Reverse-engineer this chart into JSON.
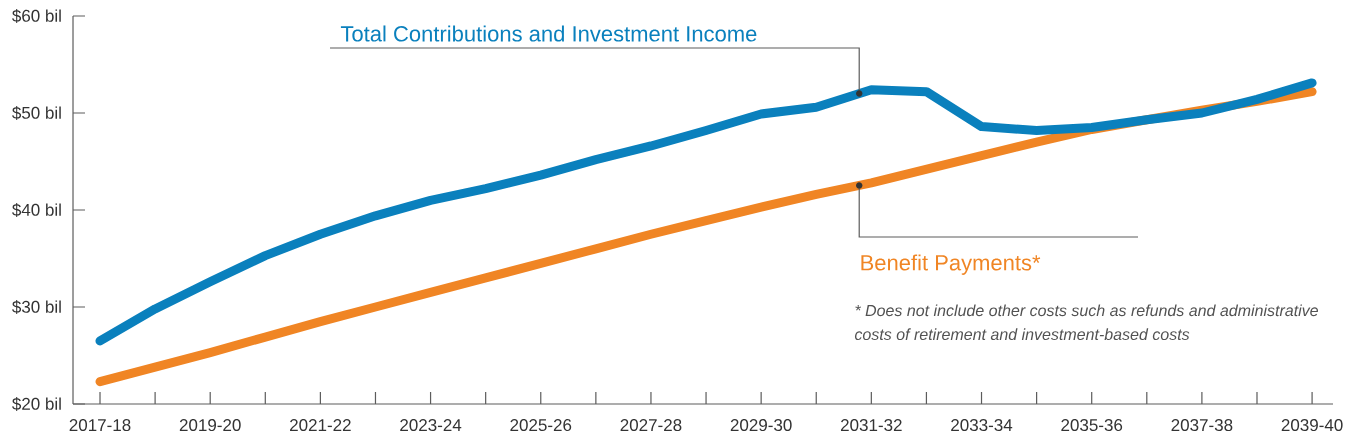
{
  "chart_data": {
    "type": "line",
    "categories": [
      "2017-18",
      null,
      "2019-20",
      null,
      "2021-22",
      null,
      "2023-24",
      null,
      "2025-26",
      null,
      "2027-28",
      null,
      "2029-30",
      null,
      "2031-32",
      null,
      "2033-34",
      null,
      "2035-36",
      null,
      "2037-38",
      null,
      "2039-40"
    ],
    "series": [
      {
        "name": "Total Contributions and Investment Income",
        "color": "#0a80bd",
        "values": [
          26.5,
          29.8,
          32.6,
          35.3,
          37.5,
          39.4,
          41.0,
          42.2,
          43.6,
          45.2,
          46.6,
          48.2,
          49.9,
          50.6,
          52.4,
          52.2,
          48.6,
          48.2,
          48.5,
          49.3,
          50.0,
          51.4,
          53.1
        ]
      },
      {
        "name": "Benefit Payments*",
        "color": "#f08524",
        "values": [
          22.3,
          23.8,
          25.3,
          26.9,
          28.5,
          30.0,
          31.5,
          33.0,
          34.5,
          36.0,
          37.5,
          38.9,
          40.3,
          41.6,
          42.8,
          44.2,
          45.6,
          47.0,
          48.3,
          49.3,
          50.3,
          51.2,
          52.2
        ]
      }
    ],
    "ylim": [
      20,
      60
    ],
    "yticks": [
      {
        "value": 20,
        "label": "$20 bil"
      },
      {
        "value": 30,
        "label": "$30 bil"
      },
      {
        "value": 40,
        "label": "$40 bil"
      },
      {
        "value": 50,
        "label": "$50 bil"
      },
      {
        "value": 60,
        "label": "$60 bil"
      }
    ],
    "annotations": [
      "* Does not include other costs such as refunds and administrative costs of retirement and investment-based costs"
    ]
  }
}
